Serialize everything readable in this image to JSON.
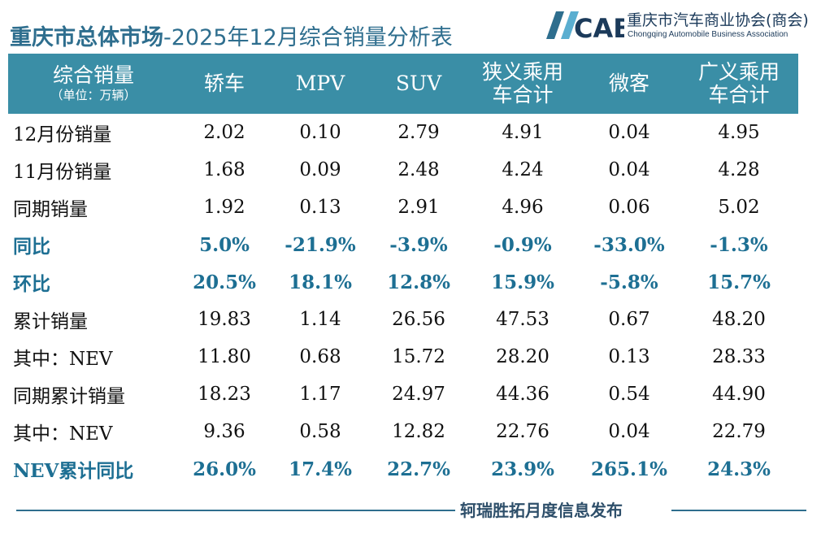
{
  "title": {
    "main": "重庆市总体市场",
    "sub": "-2025年12月综合销量分析表"
  },
  "logo": {
    "mark_text": "CABA",
    "name_cn": "重庆市汽车商业协会(商会)",
    "name_en": "Chongqing Automobile Business Association"
  },
  "table": {
    "header_label": "综合销量",
    "header_unit": "（单位：万辆）",
    "columns": [
      "轿车",
      "MPV",
      "SUV",
      "狭义乘用车合计",
      "微客",
      "广义乘用车合计"
    ],
    "rows": [
      {
        "label": "12月份销量",
        "values": [
          "2.02",
          "0.10",
          "2.79",
          "4.91",
          "0.04",
          "4.95"
        ],
        "highlight": false
      },
      {
        "label": "11月份销量",
        "values": [
          "1.68",
          "0.09",
          "2.48",
          "4.24",
          "0.04",
          "4.28"
        ],
        "highlight": false
      },
      {
        "label": "同期销量",
        "values": [
          "1.92",
          "0.13",
          "2.91",
          "4.96",
          "0.06",
          "5.02"
        ],
        "highlight": false
      },
      {
        "label": "同比",
        "values": [
          "5.0%",
          "-21.9%",
          "-3.9%",
          "-0.9%",
          "-33.0%",
          "-1.3%"
        ],
        "highlight": true
      },
      {
        "label": "环比",
        "values": [
          "20.5%",
          "18.1%",
          "12.8%",
          "15.9%",
          "-5.8%",
          "15.7%"
        ],
        "highlight": true
      },
      {
        "label": "累计销量",
        "values": [
          "19.83",
          "1.14",
          "26.56",
          "47.53",
          "0.67",
          "48.20"
        ],
        "highlight": false
      },
      {
        "label": "其中：NEV",
        "values": [
          "11.80",
          "0.68",
          "15.72",
          "28.20",
          "0.13",
          "28.33"
        ],
        "highlight": false
      },
      {
        "label": "同期累计销量",
        "values": [
          "18.23",
          "1.17",
          "24.97",
          "44.36",
          "0.54",
          "44.90"
        ],
        "highlight": false
      },
      {
        "label": "其中：NEV",
        "values": [
          "9.36",
          "0.58",
          "12.82",
          "22.76",
          "0.04",
          "22.79"
        ],
        "highlight": false
      },
      {
        "label": "NEV累计同比",
        "values": [
          "26.0%",
          "17.4%",
          "22.7%",
          "23.9%",
          "265.1%",
          "24.3%"
        ],
        "highlight": true
      }
    ]
  },
  "footer": {
    "text": "轲瑞胜拓月度信息发布"
  },
  "colors": {
    "header_bg": "#3a8ea6",
    "accent_text": "#1d6f93",
    "title_text": "#2e6e8e"
  }
}
